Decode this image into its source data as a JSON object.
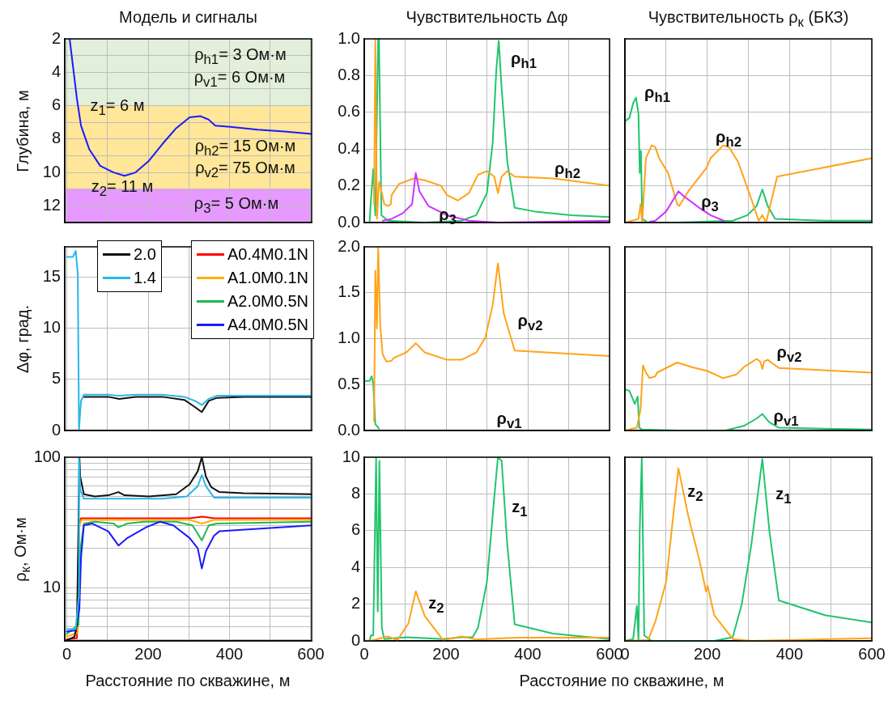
{
  "chart_data": [
    {
      "type": "line",
      "title": "Модель и сигналы",
      "ylabel": "Глубина, м",
      "xlim": [
        -5,
        602
      ],
      "xticks": [
        0,
        100,
        200,
        300,
        400,
        500,
        600
      ],
      "ylim": [
        13,
        2
      ],
      "yticks": [
        2,
        {
          "value": 3,
          "label": null
        },
        4,
        {
          "value": 5,
          "label": null
        },
        6,
        {
          "value": 7,
          "label": null
        },
        8,
        {
          "value": 9,
          "label": null
        },
        10,
        {
          "value": 11,
          "label": null
        },
        12
      ],
      "grid": true,
      "tick_labels": "y",
      "bands": [
        {
          "axis": "y",
          "from": 2,
          "to": 6,
          "color": "#e2efda"
        },
        {
          "axis": "y",
          "from": 6,
          "to": 11,
          "color": "#ffe699"
        },
        {
          "axis": "y",
          "from": 11,
          "to": 13,
          "color": "#e699ff"
        }
      ],
      "annotations": [
        "ρ$_{h1}$= 3 Ом·м",
        "ρ$_{v1}$= 6 Ом·м",
        "z$_{1}$= 6 м",
        "ρ$_{h2}$= 15 Ом·м",
        "ρ$_{v2}$= 75 Ом·м",
        "z$_{2}$= 11 м",
        "ρ$_{3}$= 5 Ом·м"
      ],
      "series": [
        {
          "color": "#1a1aff",
          "x": [
            7,
            15,
            25,
            35,
            55,
            82,
            115,
            142,
            169,
            202,
            235,
            269,
            302,
            329,
            349,
            365,
            402,
            469,
            535,
            602
          ],
          "values": [
            2,
            3.6,
            5.6,
            7.2,
            8.6,
            9.6,
            10.0,
            10.2,
            10.0,
            9.3,
            8.3,
            7.35,
            6.7,
            6.63,
            6.84,
            7.2,
            7.27,
            7.44,
            7.55,
            7.7
          ]
        }
      ]
    },
    {
      "type": "line",
      "title": "Чувствительность Δφ",
      "xlim": [
        0,
        600
      ],
      "xticks": [
        0,
        100,
        200,
        300,
        400,
        500,
        600
      ],
      "ylim": [
        0,
        1
      ],
      "yticks": [
        {
          "value": 0,
          "label": "0.0"
        },
        {
          "value": 0.2,
          "label": "0.2"
        },
        {
          "value": 0.4,
          "label": "0.4"
        },
        {
          "value": 0.6,
          "label": "0.6"
        },
        {
          "value": 0.8,
          "label": "0.8"
        },
        {
          "value": 1,
          "label": "1.0"
        }
      ],
      "grid": true,
      "tick_labels": "y",
      "annotations": [
        "ρ$_{h1}$",
        "ρ$_{h2}$",
        "ρ$_{3}$"
      ],
      "series": [
        {
          "color": "#22c46e",
          "x": [
            0,
            13,
            15,
            22,
            27,
            34,
            36,
            42,
            58,
            148,
            238,
            274,
            300,
            314,
            323,
            329,
            336,
            350,
            368,
            417,
            507,
            600
          ],
          "values": [
            0,
            0,
            0.08,
            0.29,
            0.04,
            1.0,
            1.0,
            0.04,
            0.01,
            0,
            0.01,
            0.04,
            0.16,
            0.43,
            0.83,
            0.99,
            0.73,
            0.33,
            0.08,
            0.06,
            0.04,
            0.03
          ]
        },
        {
          "color": "#ffa31a",
          "x": [
            24,
            27,
            31,
            36,
            40,
            49,
            58,
            65,
            67,
            85,
            121,
            148,
            188,
            202,
            229,
            256,
            278,
            300,
            318,
            327,
            336,
            350,
            368,
            462,
            600
          ],
          "values": [
            0.1,
            1.0,
            0.02,
            0.22,
            0.19,
            0.1,
            0.09,
            0.1,
            0.15,
            0.21,
            0.24,
            0.23,
            0.2,
            0.15,
            0.12,
            0.16,
            0.26,
            0.28,
            0.25,
            0.16,
            0.25,
            0.28,
            0.25,
            0.24,
            0.2
          ]
        },
        {
          "color": "#cc33ff",
          "x": [
            45,
            67,
            94,
            117,
            126,
            135,
            157,
            202,
            256,
            327,
            600
          ],
          "values": [
            0.01,
            0.02,
            0.05,
            0.1,
            0.27,
            0.17,
            0.09,
            0.04,
            0.01,
            0,
            0.01
          ]
        }
      ]
    },
    {
      "type": "line",
      "title": "Чувствительность ρ$_{к}$ (БКЗ)",
      "xlim": [
        0,
        600
      ],
      "xticks": [
        0,
        100,
        200,
        300,
        400,
        500,
        600
      ],
      "ylim": [
        0,
        1
      ],
      "yticks": [
        0,
        0.2,
        0.4,
        0.6,
        0.8,
        1
      ],
      "grid": true,
      "tick_labels": false,
      "annotations": [
        "ρ$_{h1}$",
        "ρ$_{h2}$",
        "ρ$_{3}$"
      ],
      "series": [
        {
          "color": "#22c46e",
          "x": [
            0,
            11,
            20,
            27,
            33,
            36,
            39,
            42,
            56,
            127,
            262,
            298,
            320,
            334,
            347,
            365,
            486,
            600
          ],
          "values": [
            0.55,
            0.57,
            0.65,
            0.68,
            0.59,
            0.27,
            0.39,
            0.02,
            0,
            0,
            0.01,
            0.04,
            0.09,
            0.18,
            0.09,
            0.02,
            0.01,
            0.01
          ]
        },
        {
          "color": "#ffa31a",
          "x": [
            0,
            33,
            38,
            42,
            51,
            65,
            74,
            83,
            105,
            127,
            132,
            154,
            199,
            208,
            239,
            253,
            275,
            307,
            325,
            334,
            343,
            370,
            600
          ],
          "values": [
            0,
            0.02,
            0.1,
            0,
            0.35,
            0.42,
            0.41,
            0.35,
            0.27,
            0.1,
            0.09,
            0.17,
            0.3,
            0.35,
            0.42,
            0.41,
            0.33,
            0.13,
            0.01,
            0.04,
            0,
            0.25,
            0.35
          ]
        },
        {
          "color": "#cc33ff",
          "x": [
            60,
            74,
            100,
            130,
            145,
            181,
            208,
            240
          ],
          "values": [
            0.005,
            0.01,
            0.06,
            0.17,
            0.14,
            0.08,
            0.04,
            0.01
          ]
        }
      ]
    },
    {
      "type": "line",
      "ylabel": "Δφ, град.",
      "xlim": [
        -5,
        602
      ],
      "xticks": [
        0,
        100,
        200,
        300,
        400,
        500,
        600
      ],
      "ylim": [
        0,
        18
      ],
      "yticks": [
        0,
        5,
        10,
        15
      ],
      "grid": true,
      "tick_labels": "y",
      "legend": "top left",
      "series": [
        {
          "name": "2.0",
          "color": "#111111",
          "x": [
            42,
            55,
            102,
            129,
            169,
            235,
            289,
            315,
            332,
            349,
            369,
            435,
            602
          ],
          "values": [
            3.3,
            3.3,
            3.3,
            3.1,
            3.3,
            3.3,
            3.0,
            2.3,
            1.8,
            2.9,
            3.2,
            3.3,
            3.3
          ]
        },
        {
          "name": "1.4",
          "color": "#29b6e8",
          "x": [
            0,
            15,
            22,
            27,
            30,
            32,
            35,
            42,
            55,
            102,
            129,
            169,
            235,
            289,
            315,
            332,
            349,
            369,
            435,
            602
          ],
          "values": [
            17,
            17,
            17.6,
            15.4,
            0,
            1.3,
            2.9,
            3.5,
            3.5,
            3.5,
            3.4,
            3.5,
            3.5,
            3.3,
            2.9,
            2.5,
            3.1,
            3.4,
            3.4,
            3.4
          ]
        }
      ]
    },
    {
      "type": "line",
      "xlim": [
        0,
        600
      ],
      "xticks": [
        0,
        100,
        200,
        300,
        400,
        500,
        600
      ],
      "ylim": [
        0,
        2
      ],
      "yticks": [
        {
          "value": 0,
          "label": "0.0"
        },
        {
          "value": 0.5,
          "label": "0.5"
        },
        {
          "value": 1,
          "label": "1.0"
        },
        {
          "value": 1.5,
          "label": "1.5"
        },
        {
          "value": 2,
          "label": "2.0"
        }
      ],
      "grid": true,
      "tick_labels": "y",
      "annotations": [
        "ρ$_{v2}$",
        "ρ$_{v1}$"
      ],
      "series": [
        {
          "color": "#22c46e",
          "x": [
            0,
            13,
            18,
            22,
            27,
            36
          ],
          "values": [
            0.54,
            0.54,
            0.59,
            0.51,
            0.07,
            0.02
          ]
        },
        {
          "color": "#ffa31a",
          "x": [
            24,
            27,
            31,
            34,
            39,
            45,
            54,
            67,
            72,
            103,
            126,
            148,
            202,
            238,
            274,
            296,
            314,
            327,
            341,
            368,
            600
          ],
          "values": [
            0.1,
            1.74,
            1.11,
            2.0,
            1.15,
            0.83,
            0.75,
            0.76,
            0.79,
            0.85,
            0.95,
            0.85,
            0.77,
            0.77,
            0.85,
            1.01,
            1.36,
            1.82,
            1.28,
            0.87,
            0.81
          ]
        }
      ]
    },
    {
      "type": "line",
      "xlim": [
        0,
        600
      ],
      "xticks": [
        0,
        100,
        200,
        300,
        400,
        500,
        600
      ],
      "ylim": [
        0,
        2
      ],
      "yticks": [
        0,
        0.5,
        1,
        1.5,
        2
      ],
      "grid": true,
      "tick_labels": false,
      "annotations": [
        "ρ$_{v2}$",
        "ρ$_{v1}$"
      ],
      "series": [
        {
          "color": "#22c46e",
          "x": [
            0,
            11,
            24,
            31,
            35,
            42,
            127,
            244,
            289,
            320,
            334,
            351,
            374,
            600
          ],
          "values": [
            0.45,
            0.43,
            0.29,
            0.37,
            0.03,
            0.01,
            0,
            0,
            0.05,
            0.13,
            0.18,
            0.09,
            0.03,
            0.01
          ]
        },
        {
          "color": "#ffa31a",
          "x": [
            0,
            29,
            38,
            44,
            51,
            60,
            74,
            78,
            127,
            163,
            199,
            239,
            271,
            289,
            320,
            329,
            334,
            338,
            347,
            374,
            600
          ],
          "values": [
            0,
            0.03,
            0.23,
            0.71,
            0.63,
            0.57,
            0.59,
            0.63,
            0.74,
            0.69,
            0.65,
            0.57,
            0.61,
            0.69,
            0.78,
            0.75,
            0.67,
            0.75,
            0.77,
            0.68,
            0.63
          ]
        }
      ]
    },
    {
      "type": "line",
      "ylabel": "ρ$_{к}$, Ом·м",
      "xlabel": "Расстояние по скважине, м",
      "xlim": [
        -5,
        602
      ],
      "xticks": [
        0,
        {
          "value": 100,
          "label": null
        },
        200,
        {
          "value": 300,
          "label": null
        },
        400,
        {
          "value": 500,
          "label": null
        },
        600
      ],
      "ylim": [
        3.9,
        100
      ],
      "yticks": [
        {
          "value": 4,
          "label": null
        },
        {
          "value": 5,
          "label": null
        },
        {
          "value": 6,
          "label": null
        },
        {
          "value": 7,
          "label": null
        },
        {
          "value": 8,
          "label": null
        },
        {
          "value": 9,
          "label": null
        },
        10,
        {
          "value": 20,
          "label": null
        },
        {
          "value": 30,
          "label": null
        },
        {
          "value": 40,
          "label": null
        },
        {
          "value": 50,
          "label": null
        },
        {
          "value": 60,
          "label": null
        },
        {
          "value": 70,
          "label": null
        },
        {
          "value": 80,
          "label": null
        },
        {
          "value": 90,
          "label": null
        },
        100
      ],
      "log": true,
      "grid": true,
      "legend": "top right",
      "series": [
        {
          "name": "A0.4M0.1N",
          "color": "#ff0000",
          "x": [
            0,
            25,
            30,
            35,
            302,
            332,
            362,
            602
          ],
          "values": [
            4.0,
            4.1,
            32,
            34,
            34,
            35,
            34,
            34
          ]
        },
        {
          "name": "A1.0M0.1N",
          "color": "#ffb000",
          "x": [
            0,
            27,
            31,
            36,
            302,
            332,
            362,
            602
          ],
          "values": [
            4.2,
            4.5,
            30,
            33,
            33,
            31,
            33,
            33
          ]
        },
        {
          "name": "A2.0M0.5N",
          "color": "#1db954",
          "x": [
            0,
            29,
            33,
            42,
            69,
            115,
            127,
            149,
            189,
            269,
            309,
            332,
            349,
            369,
            602
          ],
          "values": [
            4.4,
            5.2,
            19,
            31,
            32,
            31,
            29,
            31,
            32,
            32,
            30,
            23,
            30,
            31,
            32
          ]
        },
        {
          "name": "A4.0M0.5N",
          "color": "#1a1aff",
          "x": [
            0,
            22,
            31,
            35,
            42,
            62,
            102,
            127,
            149,
            195,
            229,
            262,
            302,
            322,
            332,
            342,
            362,
            375,
            602
          ],
          "values": [
            4.6,
            4.7,
            6.9,
            17,
            30,
            31,
            27,
            21,
            24,
            29,
            32,
            30,
            24,
            20,
            14,
            19,
            25,
            27,
            30
          ]
        },
        {
          "color": "#111111",
          "x": [
            0,
            19,
            25,
            29,
            31,
            33,
            42,
            69,
            102,
            127,
            142,
            202,
            269,
            302,
            322,
            332,
            342,
            355,
            375,
            435,
            602
          ],
          "values": [
            3.95,
            4.2,
            5.2,
            35,
            100,
            71,
            52,
            50,
            51,
            54,
            51,
            50,
            52,
            62,
            78,
            100,
            71,
            59,
            54,
            53,
            52
          ]
        },
        {
          "color": "#29b6e8",
          "x": [
            0,
            22,
            29,
            30,
            33,
            42,
            102,
            169,
            235,
            295,
            322,
            332,
            342,
            362,
            435,
            602
          ],
          "values": [
            4.8,
            4.8,
            8.3,
            100,
            56,
            48,
            48,
            48,
            48,
            50,
            60,
            73,
            60,
            49,
            49,
            49
          ]
        }
      ]
    },
    {
      "type": "line",
      "xlabel": "Расстояние по скважине, м",
      "xlim": [
        0,
        600
      ],
      "xticks": [
        0,
        {
          "value": 100,
          "label": null
        },
        200,
        {
          "value": 300,
          "label": null
        },
        400,
        {
          "value": 500,
          "label": null
        },
        600
      ],
      "ylim": [
        0,
        10
      ],
      "yticks": [
        0,
        2,
        4,
        6,
        8,
        10
      ],
      "grid": true,
      "annotations": [
        "z$_{2}$",
        "z$_{1}$"
      ],
      "series": [
        {
          "color": "#22c46e",
          "x": [
            0,
            13,
            16,
            22,
            29,
            33,
            37,
            43,
            49,
            103,
            193,
            238,
            265,
            278,
            300,
            318,
            327,
            336,
            350,
            368,
            462,
            600
          ],
          "values": [
            0,
            0,
            0.3,
            0.3,
            10,
            1.6,
            9.8,
            0.7,
            0.1,
            0.2,
            0.1,
            0.2,
            0.2,
            0.7,
            3.2,
            7.8,
            10,
            9.8,
            5.2,
            0.9,
            0.4,
            0.1
          ]
        },
        {
          "color": "#ffa31a",
          "x": [
            0,
            22,
            58,
            81,
            108,
            126,
            148,
            193,
            238,
            274,
            372,
            600
          ],
          "values": [
            0,
            0.04,
            0.24,
            0.04,
            0.95,
            2.7,
            1.35,
            0.04,
            0.24,
            0.08,
            0.18,
            0.18
          ]
        }
      ]
    },
    {
      "type": "line",
      "xlim": [
        0,
        600
      ],
      "xticks": [
        0,
        {
          "value": 100,
          "label": null
        },
        200,
        {
          "value": 300,
          "label": null
        },
        400,
        {
          "value": 500,
          "label": null
        },
        600
      ],
      "ylim": [
        0,
        10
      ],
      "yticks": [
        0,
        2,
        4,
        6,
        8,
        10
      ],
      "grid": true,
      "tick_labels": "x",
      "annotations": [
        "z$_{2}$",
        "z$_{1}$"
      ],
      "series": [
        {
          "color": "#22c46e",
          "x": [
            0,
            20,
            29,
            33,
            36,
            41,
            47,
            65,
            217,
            262,
            284,
            307,
            334,
            351,
            374,
            486,
            600
          ],
          "values": [
            0,
            0.1,
            1.9,
            0,
            6,
            10,
            0.3,
            0,
            0,
            0.2,
            2,
            5.2,
            9.9,
            6,
            2.2,
            1.4,
            1
          ]
        },
        {
          "color": "#ffa31a",
          "x": [
            0,
            56,
            74,
            100,
            130,
            154,
            181,
            197,
            201,
            217,
            262,
            307,
            600
          ],
          "values": [
            0,
            0.04,
            1.05,
            3.2,
            9.4,
            6.8,
            4.4,
            2.7,
            3,
            1.4,
            0.1,
            0,
            0.14
          ]
        }
      ]
    }
  ]
}
